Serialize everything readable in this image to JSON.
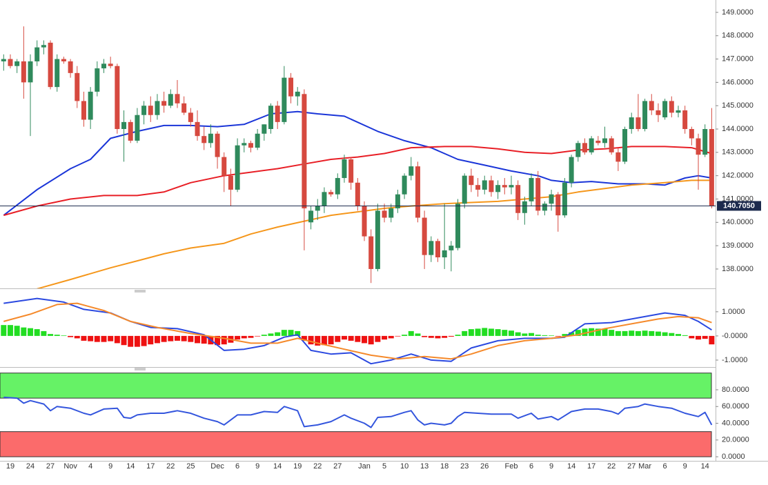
{
  "chart_data": [
    {
      "type": "candlestick",
      "categories": [
        null,
        "19",
        null,
        null,
        "24",
        null,
        null,
        "27",
        null,
        null,
        "Nov",
        null,
        null,
        "4",
        null,
        null,
        "9",
        null,
        null,
        "14",
        null,
        null,
        "17",
        null,
        null,
        "22",
        null,
        null,
        "25",
        null,
        null,
        null,
        "Dec",
        null,
        null,
        "6",
        null,
        null,
        "9",
        null,
        null,
        "14",
        null,
        null,
        "19",
        null,
        null,
        "22",
        null,
        null,
        "27",
        null,
        null,
        null,
        "Jan",
        null,
        null,
        "5",
        null,
        null,
        "10",
        null,
        null,
        "13",
        null,
        null,
        "18",
        null,
        null,
        "23",
        null,
        null,
        "26",
        null,
        null,
        null,
        "Feb",
        null,
        null,
        "6",
        null,
        null,
        "9",
        null,
        null,
        "14",
        null,
        null,
        "17",
        null,
        null,
        "22",
        null,
        null,
        "27",
        null,
        "Mar",
        null,
        null,
        "6",
        null,
        null,
        "9",
        null,
        null,
        "14",
        null
      ],
      "open": [
        146.9,
        147.0,
        146.7,
        146.9,
        146.0,
        146.9,
        147.5,
        147.7,
        145.8,
        147.0,
        146.9,
        146.4,
        145.2,
        144.4,
        145.6,
        146.6,
        146.8,
        146.7,
        144.0,
        144.3,
        143.5,
        144.6,
        145.0,
        144.6,
        145.2,
        145.0,
        145.5,
        145.1,
        144.7,
        144.3,
        143.7,
        143.4,
        143.8,
        142.8,
        142.0,
        141.4,
        143.3,
        143.4,
        143.2,
        143.8,
        144.0,
        145.0,
        144.3,
        146.2,
        145.4,
        145.5,
        140.0,
        140.5,
        140.7,
        141.3,
        141.2,
        141.9,
        142.7,
        141.7,
        140.7,
        139.4,
        138.0,
        140.5,
        140.2,
        140.6,
        141.2,
        142.0,
        142.4,
        140.2,
        138.6,
        139.2,
        138.5,
        138.8,
        138.9,
        140.8,
        142.0,
        141.6,
        141.4,
        141.8,
        141.3,
        141.6,
        141.5,
        141.6,
        140.4,
        140.9,
        141.9,
        140.5,
        140.8,
        141.2,
        140.3,
        141.7,
        142.8,
        143.4,
        143.0,
        143.5,
        143.4,
        143.6,
        143.0,
        142.6,
        144.0,
        144.5,
        144.0,
        145.2,
        144.8,
        144.5,
        145.2,
        144.7,
        144.8,
        144.0,
        143.6,
        142.9,
        144.0
      ],
      "high": [
        147.2,
        147.2,
        147.0,
        148.4,
        147.2,
        147.8,
        147.8,
        147.8,
        147.2,
        147.1,
        147.0,
        146.7,
        145.6,
        145.8,
        146.9,
        147.0,
        147.1,
        146.8,
        144.8,
        144.4,
        144.9,
        145.2,
        145.4,
        145.5,
        145.6,
        145.7,
        146.1,
        145.4,
        144.9,
        144.8,
        144.1,
        144.2,
        143.9,
        143.0,
        142.3,
        143.6,
        143.6,
        143.5,
        144.0,
        144.2,
        145.1,
        145.2,
        146.7,
        146.4,
        145.8,
        145.7,
        140.7,
        141.0,
        141.5,
        141.4,
        142.1,
        142.9,
        142.8,
        141.9,
        140.9,
        139.7,
        140.8,
        140.8,
        140.8,
        141.4,
        142.1,
        142.8,
        142.6,
        140.5,
        139.4,
        139.3,
        140.8,
        139.2,
        141.0,
        142.1,
        142.3,
        141.9,
        142.0,
        142.0,
        141.8,
        141.9,
        142.0,
        141.8,
        141.1,
        142.1,
        142.2,
        140.9,
        141.4,
        141.3,
        141.9,
        142.9,
        143.5,
        143.6,
        143.7,
        143.7,
        144.1,
        143.7,
        143.2,
        144.1,
        144.7,
        145.5,
        145.3,
        145.5,
        145.1,
        145.3,
        145.4,
        145.0,
        145.0,
        144.1,
        143.8,
        144.2,
        144.9
      ],
      "low": [
        146.5,
        146.6,
        146.4,
        145.3,
        143.7,
        146.7,
        147.2,
        145.7,
        145.6,
        146.8,
        146.2,
        144.9,
        144.1,
        144.0,
        145.4,
        146.4,
        146.6,
        143.8,
        142.6,
        143.4,
        143.4,
        144.2,
        144.3,
        144.4,
        144.7,
        144.9,
        144.9,
        144.6,
        144.1,
        143.5,
        143.1,
        143.2,
        142.3,
        141.3,
        140.7,
        141.3,
        143.0,
        143.0,
        143.1,
        143.5,
        143.8,
        144.0,
        144.2,
        145.1,
        145.0,
        138.8,
        139.7,
        140.1,
        140.4,
        141.1,
        141.0,
        141.7,
        141.4,
        140.5,
        139.2,
        137.4,
        137.9,
        140.0,
        140.0,
        140.4,
        141.0,
        141.8,
        140.0,
        138.0,
        138.3,
        138.3,
        138.0,
        137.9,
        138.8,
        140.6,
        141.3,
        141.1,
        141.2,
        141.1,
        141.0,
        141.2,
        141.2,
        140.1,
        139.9,
        140.7,
        140.3,
        140.3,
        140.5,
        139.6,
        140.2,
        141.5,
        142.6,
        142.9,
        142.9,
        143.3,
        143.2,
        142.9,
        142.2,
        142.5,
        143.8,
        143.9,
        143.9,
        144.6,
        144.3,
        144.4,
        144.5,
        144.5,
        143.8,
        143.3,
        141.4,
        142.8,
        140.6
      ],
      "close": [
        147.0,
        146.7,
        146.9,
        146.0,
        146.9,
        147.5,
        147.6,
        145.8,
        147.0,
        146.9,
        146.4,
        145.2,
        144.4,
        145.6,
        146.6,
        146.8,
        146.7,
        144.0,
        144.3,
        143.5,
        144.6,
        145.0,
        144.6,
        145.2,
        145.0,
        145.5,
        145.1,
        144.7,
        144.3,
        143.7,
        143.4,
        143.8,
        142.8,
        142.0,
        141.4,
        143.3,
        143.4,
        143.2,
        143.8,
        144.2,
        145.0,
        144.3,
        146.2,
        145.4,
        145.6,
        140.6,
        140.5,
        140.7,
        141.3,
        141.2,
        141.9,
        142.7,
        141.7,
        140.7,
        139.4,
        138.0,
        140.5,
        140.2,
        140.6,
        141.2,
        142.0,
        142.4,
        140.2,
        138.6,
        139.2,
        138.5,
        138.8,
        139.0,
        140.8,
        142.0,
        141.6,
        141.4,
        141.8,
        141.3,
        141.6,
        141.5,
        141.6,
        140.4,
        140.9,
        141.9,
        140.5,
        140.8,
        141.2,
        140.3,
        141.7,
        142.8,
        143.4,
        143.0,
        143.6,
        143.4,
        143.6,
        143.0,
        142.6,
        144.0,
        144.5,
        144.0,
        145.2,
        144.8,
        144.6,
        145.2,
        144.7,
        144.8,
        144.0,
        143.6,
        142.9,
        144.0,
        140.7
      ],
      "up_color": "#2f8a5c",
      "down_color": "#d6493f",
      "lines": [
        {
          "color": "#1a35d8",
          "x": [
            0,
            5,
            10,
            13,
            16,
            20,
            24,
            28,
            32,
            36,
            40,
            44,
            47,
            51,
            56,
            60,
            64,
            68,
            72,
            76,
            80,
            82,
            85,
            88,
            92,
            96,
            99,
            102,
            104,
            106
          ],
          "values": [
            140.3,
            141.4,
            142.3,
            142.7,
            143.6,
            143.9,
            144.15,
            144.15,
            144.1,
            144.2,
            144.65,
            144.75,
            144.65,
            144.55,
            143.9,
            143.5,
            143.2,
            142.7,
            142.45,
            142.2,
            142.0,
            141.8,
            141.7,
            141.75,
            141.65,
            141.65,
            141.6,
            141.9,
            142.0,
            141.9
          ]
        },
        {
          "color": "#e81e25",
          "x": [
            0,
            5,
            10,
            15,
            20,
            24,
            28,
            33,
            37,
            41,
            45,
            49,
            53,
            57,
            61,
            66,
            70,
            74,
            78,
            82,
            86,
            90,
            94,
            99,
            103,
            106
          ],
          "values": [
            140.3,
            140.7,
            141.0,
            141.15,
            141.15,
            141.3,
            141.7,
            142.0,
            142.15,
            142.3,
            142.5,
            142.7,
            142.8,
            142.95,
            143.2,
            143.25,
            143.25,
            143.15,
            143.0,
            142.95,
            143.1,
            143.15,
            143.25,
            143.25,
            143.2,
            142.95
          ]
        },
        {
          "color": "#f5961a",
          "x": [
            5,
            10,
            16,
            20,
            24,
            28,
            33,
            37,
            41,
            45,
            49,
            53,
            57,
            61,
            66,
            70,
            74,
            78,
            82,
            86,
            90,
            94,
            99,
            103,
            106
          ],
          "values": [
            137.15,
            137.55,
            138.05,
            138.35,
            138.65,
            138.9,
            139.1,
            139.5,
            139.8,
            140.05,
            140.3,
            140.45,
            140.6,
            140.7,
            140.8,
            140.85,
            140.9,
            141.0,
            141.1,
            141.3,
            141.45,
            141.6,
            141.7,
            141.8,
            141.8
          ]
        }
      ],
      "last_value": {
        "value": 140.705,
        "label": "140.7050",
        "color": "#1c2a4d"
      },
      "ylim": [
        137.17,
        149.53
      ],
      "yticks": [
        {
          "value": 138,
          "label": "138.0000"
        },
        {
          "value": 139,
          "label": "139.0000"
        },
        {
          "value": 140,
          "label": "140.0000"
        },
        {
          "value": 141,
          "label": "141.0000"
        },
        {
          "value": 142,
          "label": "142.0000"
        },
        {
          "value": 143,
          "label": "143.0000"
        },
        {
          "value": 144,
          "label": "144.0000"
        },
        {
          "value": 145,
          "label": "145.0000"
        },
        {
          "value": 146,
          "label": "146.0000"
        },
        {
          "value": 147,
          "label": "147.0000"
        },
        {
          "value": 148,
          "label": "148.0000"
        },
        {
          "value": 149,
          "label": "149.0000"
        }
      ]
    },
    {
      "type": "macd",
      "values": [
        0.45,
        0.45,
        0.42,
        0.35,
        0.32,
        0.28,
        0.2,
        0.08,
        0.05,
        0.02,
        -0.05,
        -0.1,
        -0.2,
        -0.22,
        -0.25,
        -0.25,
        -0.22,
        -0.3,
        -0.38,
        -0.45,
        -0.45,
        -0.42,
        -0.35,
        -0.3,
        -0.25,
        -0.22,
        -0.2,
        -0.22,
        -0.25,
        -0.3,
        -0.32,
        -0.35,
        -0.38,
        -0.35,
        -0.28,
        -0.15,
        -0.1,
        -0.08,
        -0.02,
        0.05,
        0.1,
        0.15,
        0.25,
        0.25,
        0.2,
        -0.2,
        -0.35,
        -0.4,
        -0.38,
        -0.35,
        -0.25,
        -0.15,
        -0.2,
        -0.25,
        -0.3,
        -0.35,
        -0.25,
        -0.15,
        -0.1,
        -0.02,
        0.05,
        0.2,
        0.1,
        -0.05,
        -0.08,
        -0.1,
        -0.08,
        -0.03,
        0.05,
        0.2,
        0.28,
        0.3,
        0.33,
        0.3,
        0.28,
        0.25,
        0.22,
        0.15,
        0.1,
        0.12,
        0.05,
        0.03,
        0.02,
        -0.02,
        0.08,
        0.15,
        0.25,
        0.3,
        0.32,
        0.3,
        0.3,
        0.25,
        0.2,
        0.2,
        0.22,
        0.2,
        0.22,
        0.2,
        0.18,
        0.15,
        0.12,
        0.08,
        0.03,
        -0.1,
        -0.15,
        -0.12,
        -0.35
      ],
      "up_color": "#22dd22",
      "down_color": "#ee1111",
      "lines": [
        {
          "color": "#2a48e0",
          "x": [
            0,
            5,
            9,
            12,
            16,
            19,
            22,
            26,
            30,
            33,
            36,
            39,
            42,
            44,
            46,
            49,
            52,
            55,
            58,
            61,
            64,
            67,
            70,
            74,
            78,
            82,
            84,
            87,
            91,
            95,
            99,
            102,
            104,
            106
          ],
          "values": [
            1.35,
            1.55,
            1.4,
            1.1,
            0.95,
            0.6,
            0.35,
            0.3,
            0.05,
            -0.6,
            -0.55,
            -0.4,
            -0.05,
            0.05,
            -0.6,
            -0.75,
            -0.7,
            -1.15,
            -1.0,
            -0.75,
            -1.0,
            -1.05,
            -0.5,
            -0.2,
            -0.1,
            -0.1,
            -0.05,
            0.5,
            0.55,
            0.75,
            0.95,
            0.85,
            0.6,
            0.25
          ]
        },
        {
          "color": "#f5892a",
          "x": [
            0,
            4,
            8,
            11,
            15,
            19,
            23,
            28,
            33,
            37,
            41,
            44,
            47,
            51,
            55,
            59,
            63,
            67,
            70,
            74,
            78,
            82,
            86,
            90,
            94,
            98,
            101,
            104,
            106
          ],
          "values": [
            0.6,
            0.9,
            1.3,
            1.35,
            1.05,
            0.6,
            0.35,
            0.1,
            -0.1,
            -0.3,
            -0.3,
            -0.1,
            -0.3,
            -0.55,
            -0.8,
            -0.95,
            -0.85,
            -0.95,
            -0.75,
            -0.4,
            -0.2,
            -0.1,
            0.05,
            0.3,
            0.5,
            0.7,
            0.8,
            0.75,
            0.55
          ]
        }
      ],
      "ylim": [
        -1.23,
        1.91
      ],
      "yticks": [
        {
          "value": -1,
          "label": "-1.0000"
        },
        {
          "value": 0,
          "label": "-0.0000"
        },
        {
          "value": 1,
          "label": "1.0000"
        }
      ]
    },
    {
      "type": "line",
      "zones": [
        {
          "from": 70,
          "to": 100,
          "color": "#66f266"
        },
        {
          "from": 0,
          "to": 30,
          "color": "#fb6b6b"
        }
      ],
      "lines": [
        {
          "color": "#3355dd",
          "x": [
            0,
            2,
            3,
            4,
            6,
            7,
            8,
            10,
            12,
            13,
            15,
            17,
            18,
            19,
            20,
            22,
            24,
            26,
            28,
            30,
            32,
            33,
            35,
            37,
            39,
            41,
            42,
            44,
            45,
            47,
            49,
            51,
            52,
            54,
            55,
            56,
            58,
            60,
            61,
            62,
            63,
            64,
            66,
            67,
            68,
            69,
            71,
            73,
            76,
            77,
            79,
            80,
            82,
            83,
            85,
            87,
            89,
            91,
            92,
            93,
            95,
            96,
            98,
            100,
            102,
            104,
            105,
            106
          ],
          "values": [
            71,
            70,
            64,
            67,
            63,
            55,
            60,
            58,
            52,
            50,
            57,
            58,
            47,
            46,
            50,
            52,
            52,
            55,
            52,
            46,
            42,
            38,
            50,
            50,
            54,
            53,
            60,
            55,
            36,
            38,
            42,
            50,
            46,
            40,
            35,
            47,
            48,
            53,
            55,
            44,
            38,
            40,
            38,
            40,
            48,
            53,
            52,
            51,
            51,
            46,
            52,
            45,
            48,
            44,
            54,
            57,
            57,
            54,
            51,
            58,
            60,
            63,
            60,
            58,
            52,
            48,
            53,
            38
          ]
        }
      ],
      "ylim": [
        -4.9,
        104.7
      ],
      "yticks": [
        {
          "value": 0,
          "label": "0.0000"
        },
        {
          "value": 20,
          "label": "20.0000"
        },
        {
          "value": 40,
          "label": "40.0000"
        },
        {
          "value": 60,
          "label": "60.0000"
        },
        {
          "value": 80,
          "label": "80.0000"
        }
      ]
    }
  ]
}
